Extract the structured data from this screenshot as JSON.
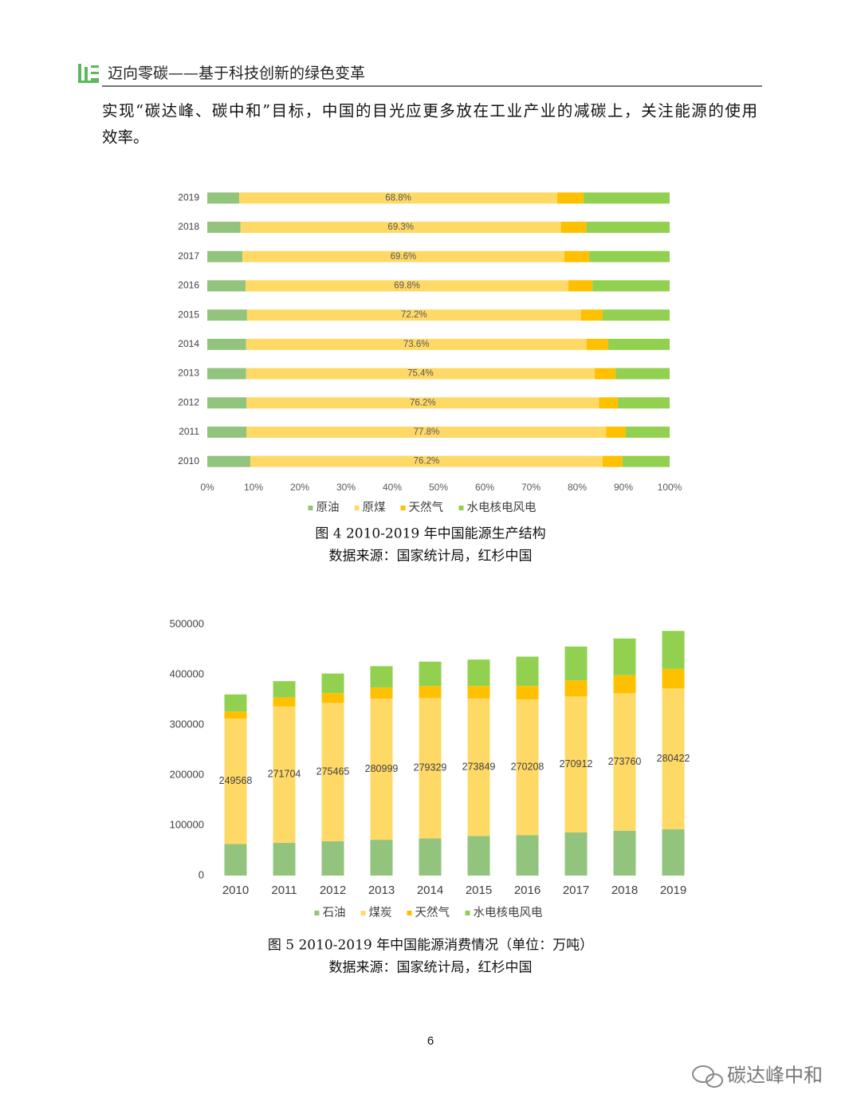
{
  "header": {
    "title": "迈向零碳——基于科技创新的绿色变革"
  },
  "paragraph": [
    "实现“碳达峰、碳中和”目标，中国的目光应更多放在工业产业的减碳上，关注能源的使用",
    "效率。"
  ],
  "chart_data": [
    {
      "type": "bar",
      "orientation": "horizontal",
      "stacked": true,
      "categories": [
        "2019",
        "2018",
        "2017",
        "2016",
        "2015",
        "2014",
        "2013",
        "2012",
        "2011",
        "2010"
      ],
      "series": [
        {
          "name": "原油",
          "color": "#92c47e",
          "values": [
            6.9,
            7.2,
            7.6,
            8.3,
            8.6,
            8.4,
            8.4,
            8.5,
            8.5,
            9.3
          ]
        },
        {
          "name": "原煤",
          "color": "#ffd966",
          "values": [
            68.8,
            69.3,
            69.6,
            69.8,
            72.2,
            73.6,
            75.4,
            76.2,
            77.8,
            76.2
          ],
          "value_labels": [
            "68.8%",
            "69.3%",
            "69.6%",
            "69.8%",
            "72.2%",
            "73.6%",
            "75.4%",
            "76.2%",
            "77.8%",
            "76.2%"
          ]
        },
        {
          "name": "天然气",
          "color": "#ffc000",
          "values": [
            5.7,
            5.5,
            5.4,
            5.2,
            4.7,
            4.7,
            4.5,
            4.1,
            4.2,
            4.3
          ]
        },
        {
          "name": "水电核电风电",
          "color": "#92d050",
          "values": [
            18.6,
            18.0,
            17.4,
            16.7,
            14.5,
            13.3,
            11.7,
            11.2,
            9.5,
            10.2
          ]
        }
      ],
      "xlim": [
        0,
        100
      ],
      "xticks": [
        {
          "value": 0,
          "label": "0%"
        },
        {
          "value": 10,
          "label": "10%"
        },
        {
          "value": 20,
          "label": "20%"
        },
        {
          "value": 30,
          "label": "30%"
        },
        {
          "value": 40,
          "label": "40%"
        },
        {
          "value": 50,
          "label": "50%"
        },
        {
          "value": 60,
          "label": "60%"
        },
        {
          "value": 70,
          "label": "70%"
        },
        {
          "value": 80,
          "label": "80%"
        },
        {
          "value": 90,
          "label": "90%"
        },
        {
          "value": 100,
          "label": "100%"
        }
      ],
      "legend": "bottom",
      "grid": false,
      "caption": "图 4  2010-2019 年中国能源生产结构",
      "source": "数据来源：国家统计局，红杉中国"
    },
    {
      "type": "bar",
      "orientation": "vertical",
      "stacked": true,
      "categories": [
        "2010",
        "2011",
        "2012",
        "2013",
        "2014",
        "2015",
        "2016",
        "2017",
        "2018",
        "2019"
      ],
      "series": [
        {
          "name": "石油",
          "color": "#92c47e",
          "values": [
            62753,
            65023,
            68363,
            71292,
            74090,
            78673,
            80627,
            85695,
            89194,
            92043
          ]
        },
        {
          "name": "煤炭",
          "color": "#ffd966",
          "values": [
            249568,
            271704,
            275465,
            280999,
            279329,
            273849,
            270208,
            270912,
            273760,
            280422
          ],
          "labels": true
        },
        {
          "name": "天然气",
          "color": "#ffc000",
          "values": [
            14426,
            17804,
            19303,
            22096,
            23845,
            24934,
            26585,
            31908,
            35866,
            38960
          ]
        },
        {
          "name": "水电核电风电",
          "color": "#92d050",
          "values": [
            33901,
            32512,
            39007,
            42526,
            48542,
            52449,
            58399,
            67312,
            73105,
            75575
          ]
        }
      ],
      "ylim": [
        0,
        500000
      ],
      "yticks": [
        0,
        100000,
        200000,
        300000,
        400000,
        500000
      ],
      "legend": "bottom",
      "grid": false,
      "caption": "图 5  2010-2019 年中国能源消费情况（单位：万吨）",
      "source": "数据来源：国家统计局，红杉中国"
    }
  ],
  "page_number": "6",
  "watermark": "碳达峰中和"
}
